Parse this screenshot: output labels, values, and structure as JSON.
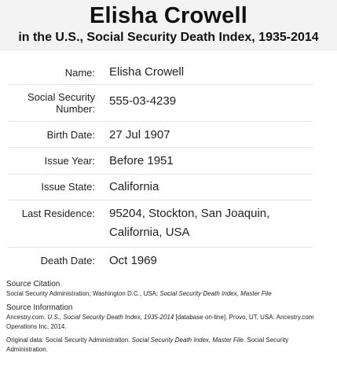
{
  "header": {
    "name": "Elisha Crowell",
    "collection": "in the U.S., Social Security Death Index, 1935-2014"
  },
  "record": {
    "name_label": "Name:",
    "name_value": "Elisha Crowell",
    "ssn_label": "Social Security Number:",
    "ssn_value": "555-03-4239",
    "birth_label": "Birth Date:",
    "birth_value": "27 Jul 1907",
    "issue_year_label": "Issue Year:",
    "issue_year_value": "Before 1951",
    "issue_state_label": "Issue State:",
    "issue_state_value": "California",
    "residence_label": "Last Residence:",
    "residence_value": "95204, Stockton, San Joaquin, California, USA",
    "death_label": "Death Date:",
    "death_value": "Oct 1969"
  },
  "source": {
    "citation_heading": "Source Citation",
    "citation_text_a": "Social Security Administration; Washington D.C., USA;",
    "citation_text_b": "Social Security Death Index, Master File",
    "info_heading": "Source Information",
    "info_text_a": "Ancestry.com.",
    "info_text_b": "U.S., Social Security Death Index, 1935-2014",
    "info_text_c": "[database on-line]. Provo, UT, USA: Ancestry.com Operations Inc, 2014.",
    "original_text_a": "Original data: Social Security Administration.",
    "original_text_b": "Social Security Death Index, Master File",
    "original_text_c": ". Social Security Administration."
  }
}
